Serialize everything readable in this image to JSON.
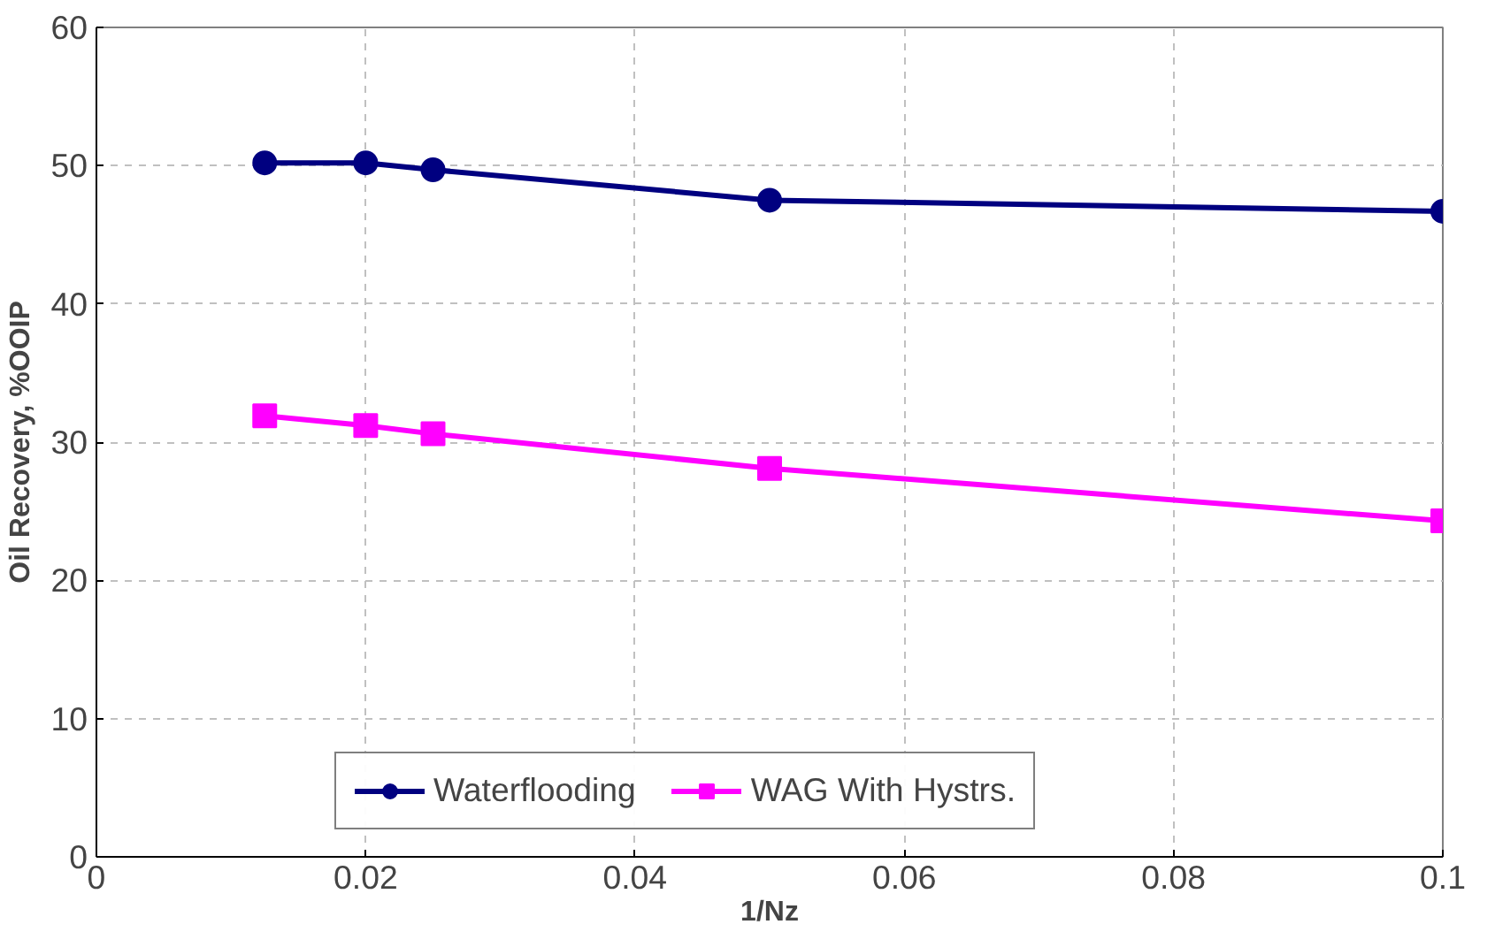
{
  "chart_data": {
    "type": "line",
    "xlabel": "1/Nz",
    "ylabel": "Oil Recovery, %OOIP",
    "xlim": [
      0,
      0.1
    ],
    "xticks": [
      0,
      0.02,
      0.04,
      0.06,
      0.08,
      0.1
    ],
    "ylim": [
      0,
      60
    ],
    "yticks": [
      0,
      10,
      20,
      30,
      40,
      50,
      60
    ],
    "x": [
      0.0125,
      0.02,
      0.025,
      0.05,
      0.1
    ],
    "series": [
      {
        "name": "Waterflooding",
        "color": "#000080",
        "marker": "circle",
        "values": [
          50.2,
          50.2,
          49.7,
          47.5,
          46.7
        ]
      },
      {
        "name": "WAG With Hystrs.",
        "color": "#ff00ff",
        "marker": "square",
        "values": [
          31.9,
          31.2,
          30.6,
          28.1,
          24.3
        ]
      }
    ],
    "grid": true,
    "legend": "bottom",
    "line_style": "solid"
  }
}
